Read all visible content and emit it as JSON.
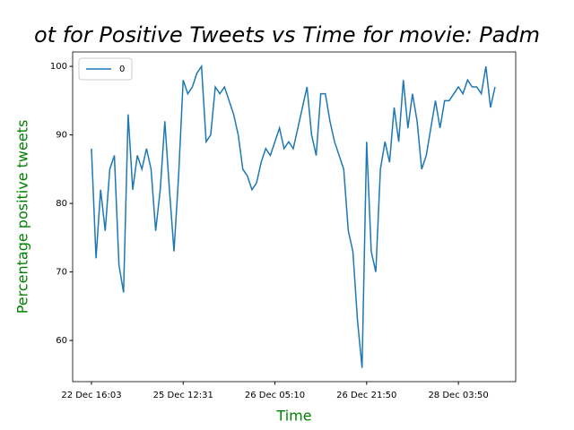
{
  "chart_data": {
    "type": "line",
    "title": "ot for Positive Tweets vs Time for movie: Padm",
    "xlabel": "Time",
    "ylabel": "Percentage positive tweets",
    "label_color": "green",
    "x": [
      0,
      5,
      10,
      15,
      20,
      25,
      30,
      35,
      40,
      45,
      50,
      55,
      60,
      65,
      70,
      75,
      80,
      85,
      90,
      95,
      100,
      105,
      110,
      115,
      120,
      125,
      130,
      135,
      140,
      145,
      150,
      155,
      160,
      165,
      170,
      175,
      180,
      185,
      190,
      195,
      200,
      205,
      210,
      215,
      220,
      225,
      230,
      235,
      240,
      245,
      250,
      255,
      260,
      265,
      270,
      275,
      280,
      285,
      290,
      295,
      300,
      305,
      310,
      315,
      320,
      325,
      330,
      335,
      340,
      345,
      350,
      355,
      360,
      365,
      370,
      375,
      380,
      385,
      390,
      395,
      400,
      405,
      410,
      415,
      420,
      425,
      430,
      435,
      440
    ],
    "series": [
      {
        "name": "0",
        "color": "#1f77b4",
        "values": [
          88,
          72,
          82,
          76,
          85,
          87,
          71,
          67,
          93,
          82,
          87,
          85,
          88,
          85,
          76,
          82,
          92,
          82,
          73,
          84,
          98,
          96,
          97,
          99,
          100,
          89,
          90,
          97,
          96,
          97,
          95,
          93,
          90,
          85,
          84,
          82,
          83,
          86,
          88,
          87,
          89,
          91,
          88,
          89,
          88,
          91,
          94,
          97,
          90,
          87,
          96,
          96,
          92,
          89,
          87,
          85,
          76,
          73,
          63,
          56,
          89,
          73,
          70,
          85,
          89,
          86,
          94,
          89,
          98,
          91,
          96,
          92,
          85,
          87,
          91,
          95,
          91,
          95,
          95,
          96,
          97,
          96,
          98,
          97,
          97,
          96,
          100,
          94,
          97
        ]
      }
    ],
    "xlim": [
      -20.5,
      462.5
    ],
    "ylim": [
      54,
      102.1
    ],
    "xticks": [
      {
        "value": 0,
        "label": "22 Dec 16:03"
      },
      {
        "value": 100,
        "label": "25 Dec 12:31"
      },
      {
        "value": 200,
        "label": "26 Dec 05:10"
      },
      {
        "value": 300,
        "label": "26 Dec 21:50"
      },
      {
        "value": 400,
        "label": "28 Dec 03:50"
      }
    ],
    "yticks": [
      60,
      70,
      80,
      90,
      100
    ],
    "legend": "upper left"
  }
}
